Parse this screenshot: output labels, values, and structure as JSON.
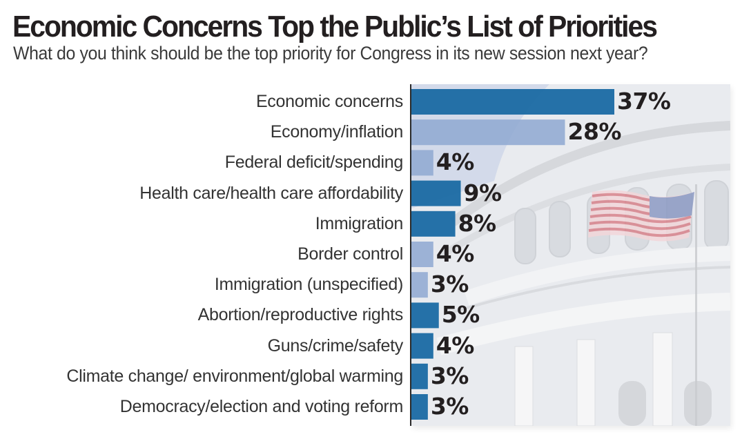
{
  "chart_data": {
    "type": "bar",
    "orientation": "horizontal",
    "title": "Economic Concerns Top the Public’s List of Priorities",
    "subtitle": "What do you think should be the top priority for Congress in its new session next year?",
    "xlabel": "",
    "ylabel": "",
    "xlim": [
      0,
      40
    ],
    "grid": false,
    "legend": "none",
    "categories": [
      "Economic concerns",
      "Economy/inflation",
      "Federal deficit/spending",
      "Health care/health care affordability",
      "Immigration",
      "Border control",
      "Immigration (unspecified)",
      "Abortion/reproductive rights",
      "Guns/crime/safety",
      "Climate change/ environment/global warming",
      "Democracy/election and voting reform"
    ],
    "values": [
      37,
      28,
      4,
      9,
      8,
      4,
      3,
      5,
      4,
      3,
      3
    ],
    "value_labels": [
      "37%",
      "28%",
      "4%",
      "9%",
      "8%",
      "4%",
      "3%",
      "5%",
      "4%",
      "3%",
      "3%"
    ],
    "is_subcategory": [
      false,
      true,
      true,
      false,
      false,
      true,
      true,
      false,
      false,
      false,
      false
    ],
    "colors": {
      "main": "#1a6aa3",
      "sub": "#8ea8d1"
    }
  },
  "background_image": "US Capitol dome with American flag"
}
